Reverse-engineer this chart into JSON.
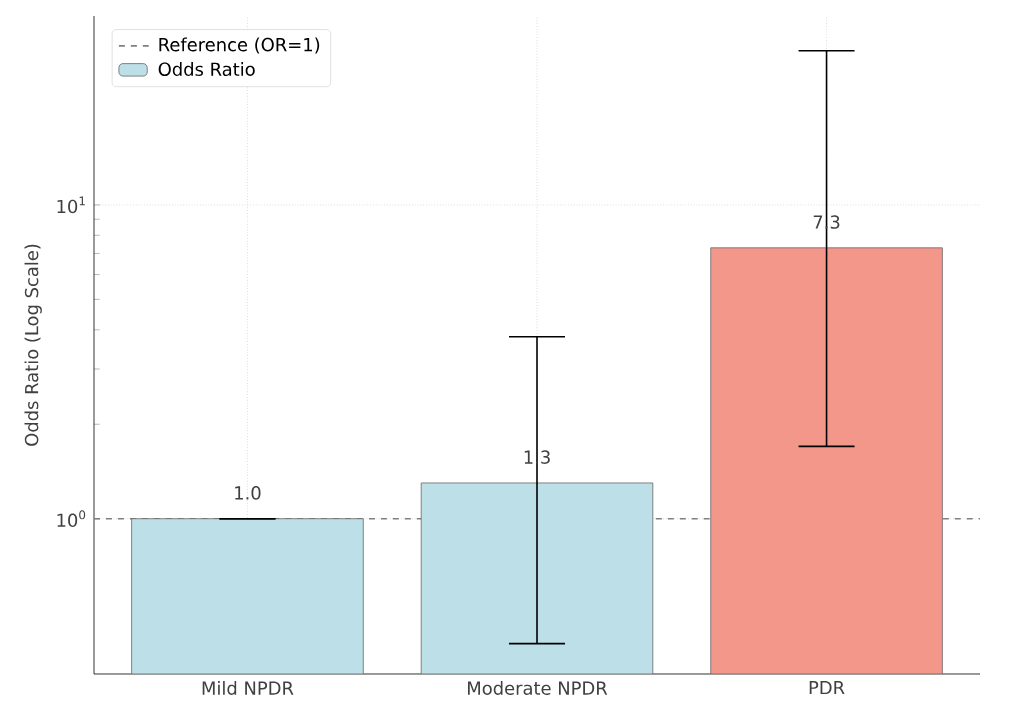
{
  "chart_data": {
    "type": "bar",
    "ylabel": "Odds Ratio (Log Scale)",
    "categories": [
      "Mild NPDR",
      "Moderate NPDR",
      "PDR"
    ],
    "series": [
      {
        "name": "Odds Ratio",
        "colors": [
          "#bde0e8",
          "#bde0e8",
          "#f4978b"
        ],
        "values": [
          1.0,
          1.3,
          7.3
        ],
        "errors": [
          [
            1.0,
            1.0
          ],
          [
            0.4,
            3.8
          ],
          [
            1.7,
            31
          ]
        ],
        "value_labels": [
          "1.0",
          "1.3",
          "7.3"
        ]
      }
    ],
    "log": "y",
    "ylim": [
      0.32,
      40
    ],
    "yticks": [
      {
        "value": 1,
        "label": "10$^{0}$"
      },
      {
        "value": 10,
        "label": "10$^{1}$"
      }
    ],
    "ref_lines": [
      {
        "axis": "y",
        "value": 1,
        "label": "Reference (OR=1)",
        "color": "#808080",
        "line_style": "dashed"
      }
    ],
    "grid": true,
    "legend": "top left"
  }
}
